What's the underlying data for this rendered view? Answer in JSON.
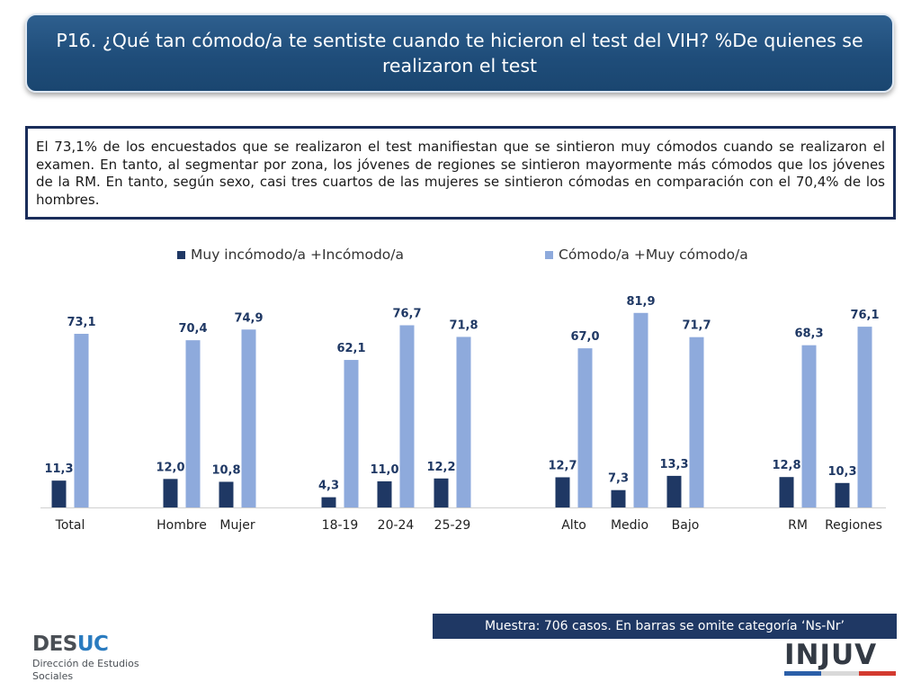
{
  "title": "P16. ¿Qué tan cómodo/a te sentiste cuando te hicieron el test del VIH? %De quienes se realizaron el test",
  "summary": "El 73,1% de los encuestados que se realizaron el test manifiestan que se sintieron muy cómodos cuando se realizaron el examen. En tanto, al segmentar por zona, los jóvenes de regiones se sintieron mayormente más cómodos que los jóvenes de la RM. En tanto, según sexo, casi tres cuartos de las mujeres se sintieron cómodas en comparación con el 70,4% de los hombres.",
  "footnote": "Muestra: 706 casos. En barras se omite categoría ‘Ns-Nr’",
  "logos": {
    "desuc_main": "DES",
    "desuc_accent": "UC",
    "desuc_line1": "Dirección de Estudios",
    "desuc_line2": "Sociales",
    "injuv": "INJUV"
  },
  "colors": {
    "series1": "#1f3864",
    "series2": "#8eaadc",
    "title_bg": "#1f4d7a",
    "footnote_bg": "#1f3864"
  },
  "chart_data": {
    "type": "bar",
    "legend_position": "top",
    "categories": [
      "Total",
      "Hombre",
      "Mujer",
      "18-19",
      "20-24",
      "25-29",
      "Alto",
      "Medio",
      "Bajo",
      "RM",
      "Regiones"
    ],
    "groups": [
      [
        "Total"
      ],
      [
        "Hombre",
        "Mujer"
      ],
      [
        "18-19",
        "20-24",
        "25-29"
      ],
      [
        "Alto",
        "Medio",
        "Bajo"
      ],
      [
        "RM",
        "Regiones"
      ]
    ],
    "series": [
      {
        "name": "Muy incómodo/a +Incómodo/a",
        "values": [
          11.3,
          12.0,
          10.8,
          4.3,
          11.0,
          12.2,
          12.7,
          7.3,
          13.3,
          12.8,
          10.3
        ],
        "labels": [
          "11,3",
          "12,0",
          "10,8",
          "4,3",
          "11,0",
          "12,2",
          "12,7",
          "7,3",
          "13,3",
          "12,8",
          "10,3"
        ]
      },
      {
        "name": "Cómodo/a +Muy cómodo/a",
        "values": [
          73.1,
          70.4,
          74.9,
          62.1,
          76.7,
          71.8,
          67.0,
          81.9,
          71.7,
          68.3,
          76.1
        ],
        "labels": [
          "73,1",
          "70,4",
          "74,9",
          "62,1",
          "76,7",
          "71,8",
          "67,0",
          "81,9",
          "71,7",
          "68,3",
          "76,1"
        ]
      }
    ],
    "ylim": [
      0,
      100
    ],
    "grid": false
  }
}
